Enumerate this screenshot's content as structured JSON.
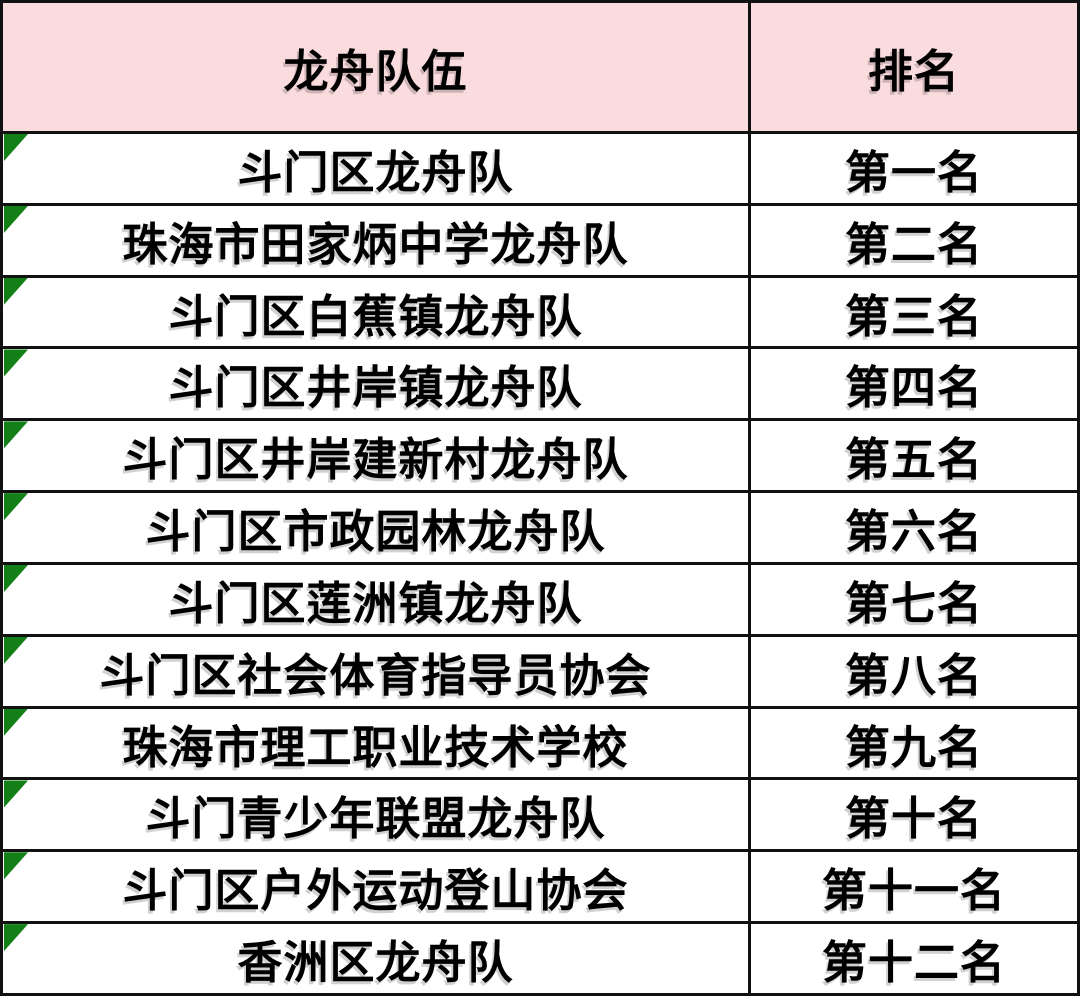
{
  "table": {
    "columns": [
      {
        "label": "龙舟队伍"
      },
      {
        "label": "排名"
      }
    ],
    "rows": [
      {
        "team": "斗门区龙舟队",
        "rank": "第一名"
      },
      {
        "team": "珠海市田家炳中学龙舟队",
        "rank": "第二名"
      },
      {
        "team": "斗门区白蕉镇龙舟队",
        "rank": "第三名"
      },
      {
        "team": "斗门区井岸镇龙舟队",
        "rank": "第四名"
      },
      {
        "team": "斗门区井岸建新村龙舟队",
        "rank": "第五名"
      },
      {
        "team": "斗门区市政园林龙舟队",
        "rank": "第六名"
      },
      {
        "team": "斗门区莲洲镇龙舟队",
        "rank": "第七名"
      },
      {
        "team": "斗门区社会体育指导员协会",
        "rank": "第八名"
      },
      {
        "team": "珠海市理工职业技术学校",
        "rank": "第九名"
      },
      {
        "team": "斗门青少年联盟龙舟队",
        "rank": "第十名"
      },
      {
        "team": "斗门区户外运动登山协会",
        "rank": "第十一名"
      },
      {
        "team": "香洲区龙舟队",
        "rank": "第十二名"
      }
    ]
  },
  "icons": {
    "row_marker": "green-triangle-cell-indicator"
  },
  "colors": {
    "header_bg": "#fadbde",
    "border": "#111111",
    "marker_green": "#137f17",
    "text": "#000000"
  }
}
